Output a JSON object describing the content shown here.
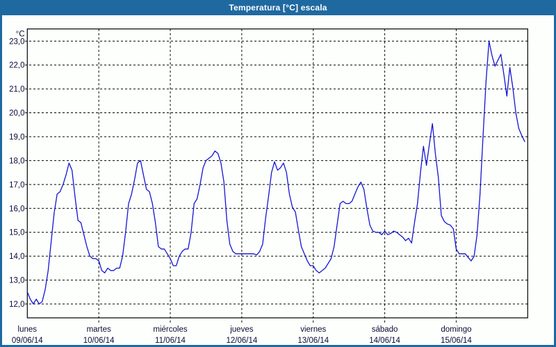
{
  "window": {
    "title": "Temperatura [°C] escala",
    "titlebar_color": "#1f69a1",
    "border_color": "#1f69a1",
    "background_color": "#fdfffc"
  },
  "chart_data": {
    "type": "line",
    "title": "Temperatura [°C] escala",
    "unit_label": "°C",
    "ylabel": "°C",
    "xlabel": "",
    "ylim": [
      12,
      23
    ],
    "ytick_step": 1,
    "ytick_labels": [
      "12,0",
      "13,0",
      "14,0",
      "15,0",
      "16,0",
      "17,0",
      "18,0",
      "19,0",
      "20,0",
      "21,0",
      "22,0",
      "23,0"
    ],
    "decimal_separator": "comma",
    "grid": "dashed",
    "legend": "none",
    "line_color": "#1414d2",
    "grid_color": "#000000",
    "axis_color": "#000000",
    "axis_text_color": "#0a0a37",
    "points_per_day": 24,
    "days": [
      {
        "name": "lunes",
        "date": "09/06/14",
        "hourly": [
          12.5,
          12.2,
          12.0,
          12.2,
          12.0,
          12.1,
          12.6,
          13.4,
          14.6,
          15.8,
          16.6,
          16.7,
          17.0,
          17.4,
          17.9,
          17.6,
          16.5,
          15.5,
          15.4,
          14.9,
          14.4,
          14.0,
          13.9,
          13.9
        ]
      },
      {
        "name": "martes",
        "date": "10/06/14",
        "hourly": [
          13.8,
          13.4,
          13.3,
          13.5,
          13.4,
          13.4,
          13.5,
          13.5,
          14.0,
          15.0,
          16.2,
          16.6,
          17.2,
          17.9,
          18.0,
          17.4,
          16.8,
          16.7,
          16.2,
          15.4,
          14.4,
          14.3,
          14.3,
          14.1
        ]
      },
      {
        "name": "miércoles",
        "date": "11/06/14",
        "hourly": [
          13.9,
          13.6,
          13.6,
          14.0,
          14.2,
          14.3,
          14.3,
          15.0,
          16.2,
          16.4,
          17.0,
          17.7,
          18.0,
          18.1,
          18.2,
          18.4,
          18.3,
          17.9,
          17.1,
          15.5,
          14.5,
          14.2,
          14.1,
          14.1
        ]
      },
      {
        "name": "jueves",
        "date": "12/06/14",
        "hourly": [
          14.1,
          14.1,
          14.1,
          14.1,
          14.1,
          14.05,
          14.2,
          14.5,
          15.6,
          16.5,
          17.5,
          17.95,
          17.6,
          17.7,
          17.9,
          17.5,
          16.6,
          16.05,
          15.85,
          15.1,
          14.4,
          14.1,
          13.8,
          13.6
        ]
      },
      {
        "name": "viernes",
        "date": "13/06/14",
        "hourly": [
          13.6,
          13.4,
          13.3,
          13.4,
          13.5,
          13.7,
          13.9,
          14.4,
          15.3,
          16.2,
          16.3,
          16.2,
          16.2,
          16.3,
          16.6,
          16.9,
          17.1,
          16.8,
          16.0,
          15.3,
          15.05,
          15.0,
          15.0,
          14.9
        ]
      },
      {
        "name": "sábado",
        "date": "14/06/14",
        "hourly": [
          15.05,
          14.9,
          14.95,
          15.05,
          15.0,
          14.9,
          14.8,
          14.65,
          14.75,
          14.55,
          15.4,
          16.2,
          17.5,
          18.6,
          17.8,
          18.7,
          19.55,
          18.3,
          17.3,
          15.7,
          15.45,
          15.35,
          15.3,
          15.15
        ]
      },
      {
        "name": "domingo",
        "date": "15/06/14",
        "hourly": [
          14.3,
          14.1,
          14.1,
          14.1,
          13.95,
          13.8,
          14.0,
          14.9,
          16.6,
          19.0,
          21.3,
          23.0,
          22.4,
          21.95,
          22.2,
          22.45,
          21.6,
          20.7,
          21.9,
          21.05,
          20.0,
          19.35,
          19.05,
          18.8
        ]
      }
    ]
  }
}
